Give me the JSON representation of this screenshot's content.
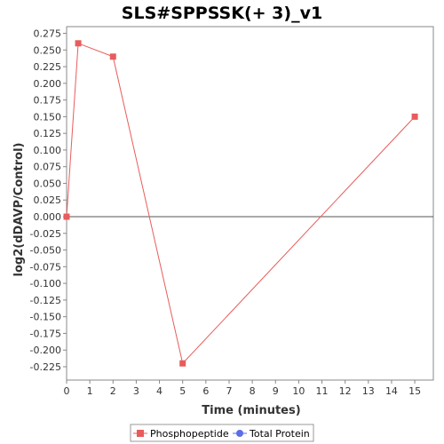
{
  "chart_data": {
    "type": "line",
    "title": "SLS#SPPSSK(+ 3)_v1",
    "xlabel": "Time (minutes)",
    "ylabel": "log2(dDAVP/Control)",
    "xlim": [
      0,
      15.8
    ],
    "ylim": [
      -0.245,
      0.285
    ],
    "x_ticks": [
      0,
      1,
      2,
      3,
      4,
      5,
      6,
      7,
      8,
      9,
      10,
      11,
      12,
      13,
      14,
      15
    ],
    "y_ticks": [
      0.275,
      0.25,
      0.225,
      0.2,
      0.175,
      0.15,
      0.125,
      0.1,
      0.075,
      0.05,
      0.025,
      0.0,
      -0.025,
      -0.05,
      -0.075,
      -0.1,
      -0.125,
      -0.15,
      -0.175,
      -0.2,
      -0.225
    ],
    "y_tick_labels": [
      "0.275",
      "0.250",
      "0.225",
      "0.200",
      "0.175",
      "0.150",
      "0.125",
      "0.100",
      "0.075",
      "0.050",
      "0.025",
      "0.000",
      "-0.025",
      "-0.050",
      "-0.075",
      "-0.100",
      "-0.125",
      "-0.150",
      "-0.175",
      "-0.200",
      "-0.225"
    ],
    "grid": false,
    "zero_line": true,
    "legend_position": "bottom",
    "series": [
      {
        "name": "Phosphopeptide",
        "color": "#e85c5c",
        "marker": "square",
        "x": [
          0,
          0.5,
          2,
          5,
          15
        ],
        "y": [
          0.0,
          0.26,
          0.24,
          -0.22,
          0.15
        ]
      },
      {
        "name": "Total Protein",
        "color": "#5b6ee8",
        "marker": "circle",
        "x": [],
        "y": []
      }
    ]
  }
}
